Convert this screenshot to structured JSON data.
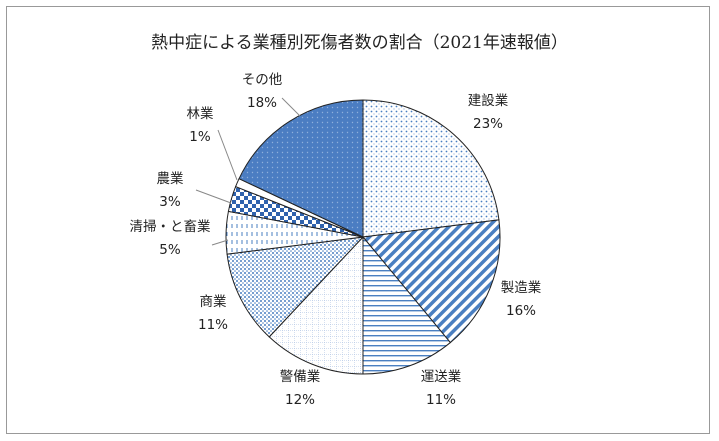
{
  "chart_data": {
    "type": "pie",
    "title": "熱中症による業種別死傷者数の割合（2021年速報値）",
    "start_angle": "12 o'clock",
    "direction": "clockwise",
    "slices": [
      {
        "name": "建設業",
        "value": 23,
        "label": "23%",
        "pattern": "dots",
        "color": "#4a7fc1"
      },
      {
        "name": "製造業",
        "value": 16,
        "label": "16%",
        "pattern": "diagonal-stripes",
        "color": "#4a7fc1"
      },
      {
        "name": "運送業",
        "value": 11,
        "label": "11%",
        "pattern": "horizontal-lines",
        "color": "#4a7fc1"
      },
      {
        "name": "警備業",
        "value": 12,
        "label": "12%",
        "pattern": "grid",
        "color": "#4a7fc1"
      },
      {
        "name": "商業",
        "value": 11,
        "label": "11%",
        "pattern": "dense-dots",
        "color": "#4a7fc1"
      },
      {
        "name": "清掃・と畜業",
        "value": 5,
        "label": "5%",
        "pattern": "vertical-dashes",
        "color": "#4a7fc1"
      },
      {
        "name": "農業",
        "value": 3,
        "label": "3%",
        "pattern": "checker",
        "color": "#2f62ad"
      },
      {
        "name": "林業",
        "value": 1,
        "label": "1%",
        "pattern": "blank",
        "color": "#ffffff"
      },
      {
        "name": "その他",
        "value": 18,
        "label": "18%",
        "pattern": "solid-dotted",
        "color": "#4b7dc2"
      }
    ]
  }
}
